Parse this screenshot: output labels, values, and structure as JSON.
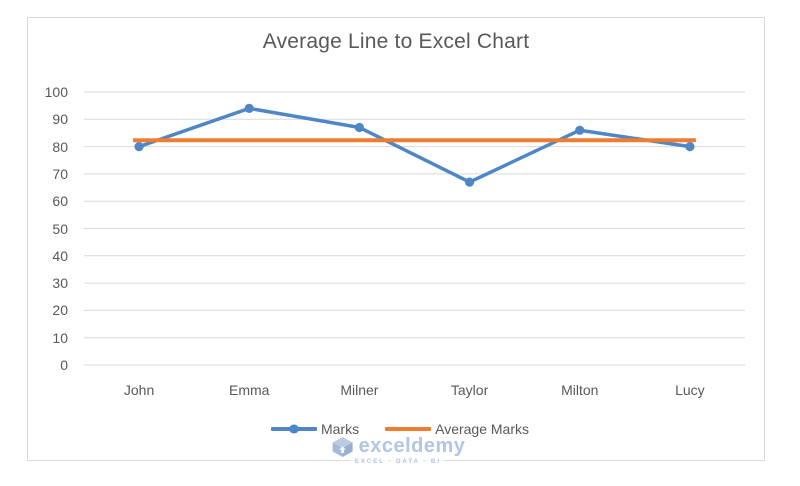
{
  "chart_data": {
    "type": "line",
    "title": "Average Line to Excel Chart",
    "categories": [
      "John",
      "Emma",
      "Milner",
      "Taylor",
      "Milton",
      "Lucy"
    ],
    "series": [
      {
        "name": "Marks",
        "values": [
          80,
          94,
          87,
          67,
          86,
          80
        ],
        "color": "#4f86c6",
        "markers": true
      },
      {
        "name": "Average Marks",
        "values": [
          82.33,
          82.33,
          82.33,
          82.33,
          82.33,
          82.33
        ],
        "color": "#ed7d31",
        "markers": false
      }
    ],
    "xlabel": "",
    "ylabel": "",
    "ylim": [
      0,
      100
    ],
    "yticks": [
      0,
      10,
      20,
      30,
      40,
      50,
      60,
      70,
      80,
      90,
      100
    ],
    "grid": true,
    "legend_position": "bottom"
  },
  "legend": {
    "items": [
      {
        "label": "Marks",
        "color": "#4f86c6",
        "marker": "line-with-circle"
      },
      {
        "label": "Average Marks",
        "color": "#ed7d31",
        "marker": "line"
      }
    ]
  },
  "watermark": {
    "brand": "exceldemy",
    "tagline": "EXCEL · DATA · BI"
  },
  "colors": {
    "marks_line": "#4f86c6",
    "average_line": "#ed7d31",
    "axis_text": "#595959",
    "gridline": "#d9d9d9",
    "chart_border": "#d9d9d9",
    "watermark": "#9db9dd",
    "background": "#ffffff"
  }
}
